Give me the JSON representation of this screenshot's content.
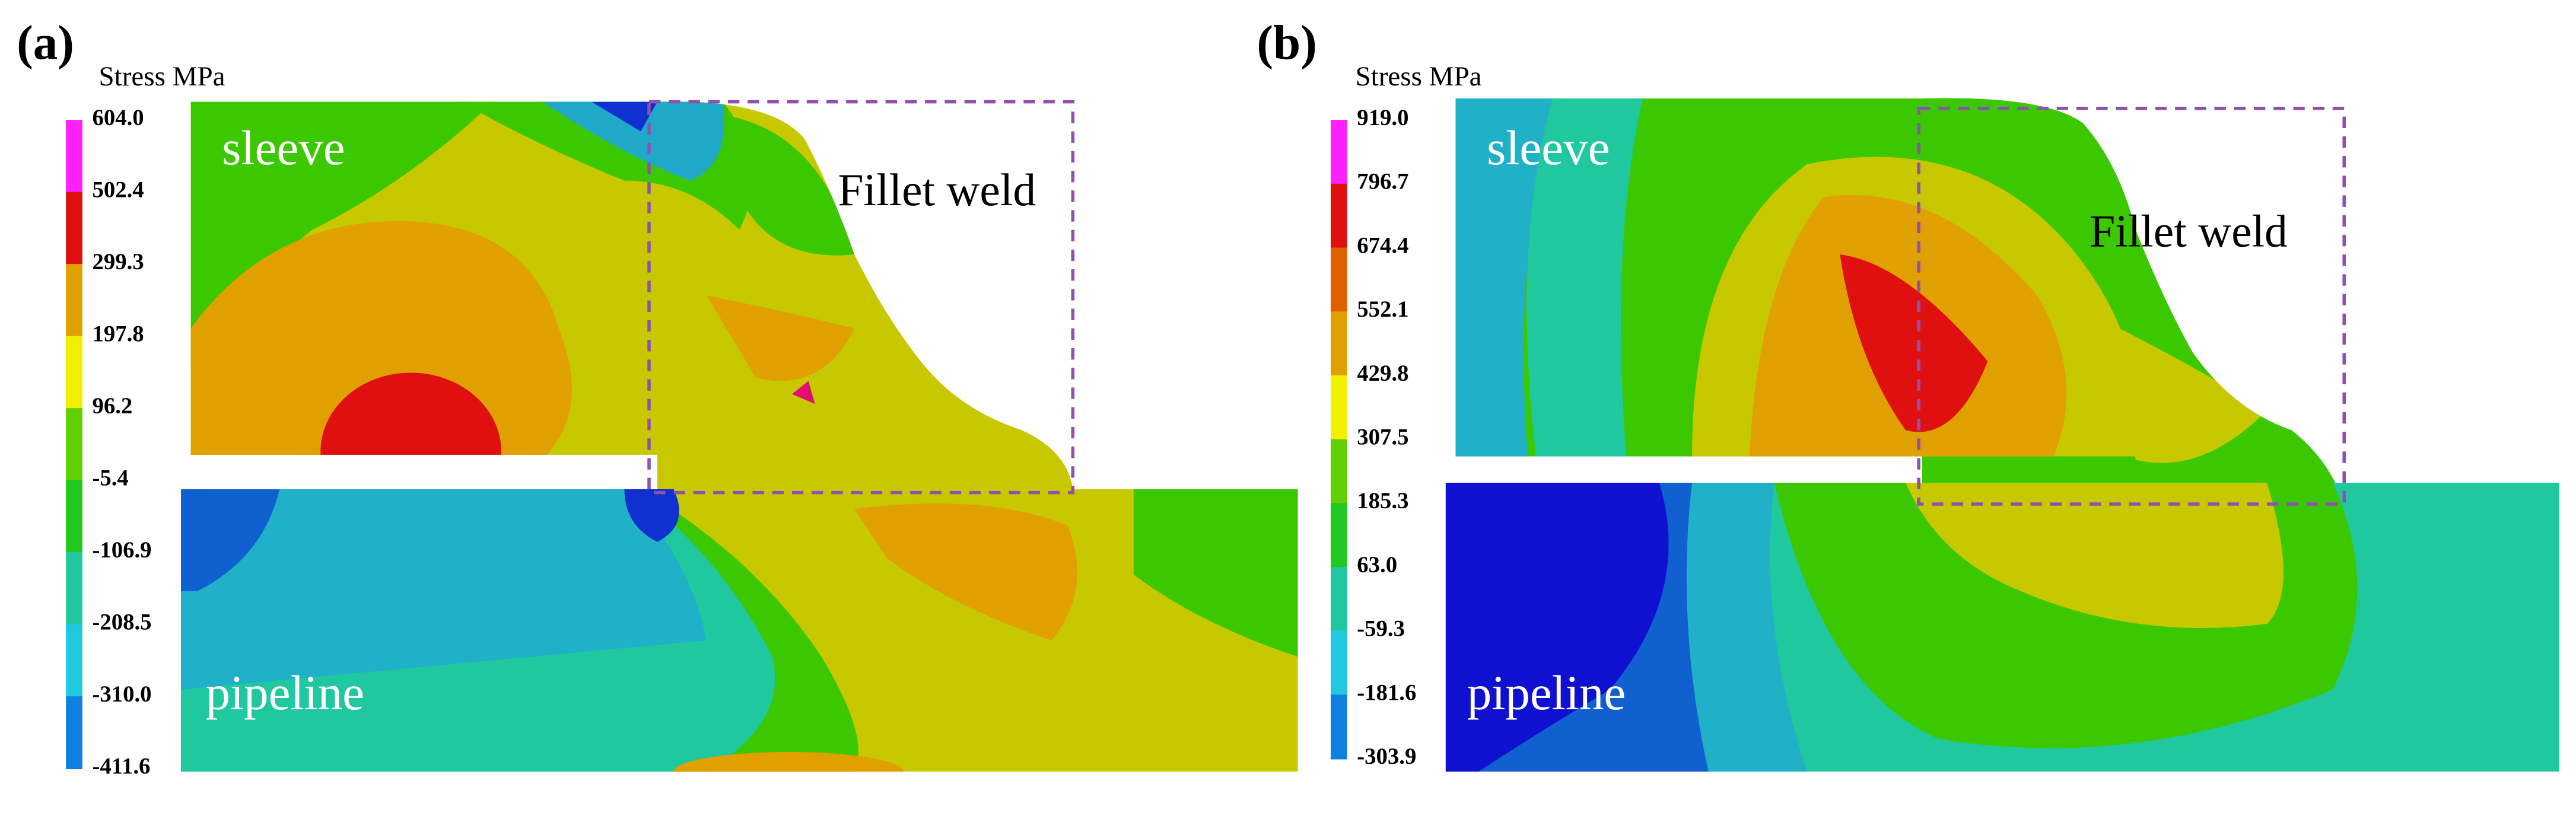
{
  "panels": [
    {
      "label": "(a)",
      "legend_title": "Stress MPa",
      "legend_ticks": [
        "604.0",
        "502.4",
        "299.3",
        "197.8",
        "96.2",
        "-5.4",
        "-106.9",
        "-208.5",
        "-310.0",
        "-411.6"
      ],
      "region_labels": [
        "sleeve",
        "pipeline",
        "Fillet weld"
      ]
    },
    {
      "label": "(b)",
      "legend_title": "Stress MPa",
      "legend_ticks": [
        "919.0",
        "796.7",
        "674.4",
        "552.1",
        "429.8",
        "307.5",
        "185.3",
        "63.0",
        "-59.3",
        "-181.6",
        "-303.9"
      ],
      "region_labels": [
        "sleeve",
        "pipeline",
        "Fillet weld"
      ]
    }
  ]
}
